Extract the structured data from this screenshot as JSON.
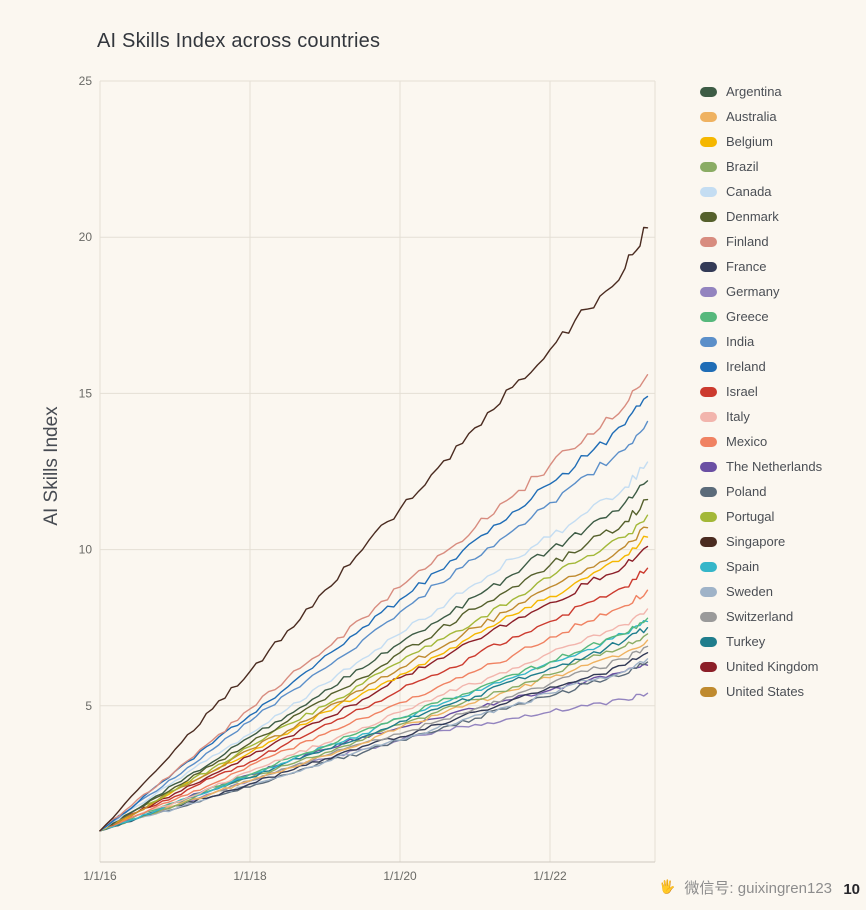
{
  "chart_data": {
    "type": "line",
    "title": "AI Skills Index across countries",
    "xlabel": "",
    "ylabel": "AI Skills Index",
    "ylim": [
      0,
      25
    ],
    "xlim": [
      2016,
      2023.4
    ],
    "grid": true,
    "legend_position": "right",
    "y_ticks": [
      {
        "label": "5",
        "value": 5
      },
      {
        "label": "10",
        "value": 10
      },
      {
        "label": "15",
        "value": 15
      },
      {
        "label": "20",
        "value": 20
      },
      {
        "label": "25",
        "value": 25
      }
    ],
    "x_ticks": [
      {
        "label": "1/1/16",
        "value": 2016
      },
      {
        "label": "1/1/18",
        "value": 2018
      },
      {
        "label": "1/1/20",
        "value": 2020
      },
      {
        "label": "1/1/22",
        "value": 2022
      }
    ],
    "x": [
      2016,
      2016.5,
      2017,
      2017.5,
      2018,
      2018.5,
      2019,
      2019.5,
      2020,
      2020.5,
      2021,
      2021.5,
      2022,
      2022.5,
      2023,
      2023.3
    ],
    "series": [
      {
        "name": "Argentina",
        "color": "#3d5c45",
        "values": [
          1.0,
          1.7,
          2.5,
          3.2,
          4.0,
          4.7,
          5.5,
          6.2,
          7.0,
          7.7,
          8.5,
          9.2,
          10.0,
          10.7,
          11.5,
          12.2
        ]
      },
      {
        "name": "Australia",
        "color": "#efb261",
        "values": [
          1.0,
          1.4,
          1.8,
          2.2,
          2.6,
          3.0,
          3.4,
          3.8,
          4.3,
          4.7,
          5.1,
          5.5,
          5.9,
          6.3,
          6.7,
          7.1
        ]
      },
      {
        "name": "Belgium",
        "color": "#f5b700",
        "values": [
          1.0,
          1.6,
          2.3,
          2.9,
          3.5,
          4.1,
          4.8,
          5.4,
          6.0,
          6.6,
          7.3,
          7.9,
          8.5,
          9.1,
          9.8,
          10.4
        ]
      },
      {
        "name": "Brazil",
        "color": "#8aac64",
        "values": [
          1.0,
          1.4,
          1.8,
          2.3,
          2.7,
          3.1,
          3.5,
          3.9,
          4.4,
          4.8,
          5.2,
          5.6,
          6.0,
          6.5,
          6.9,
          7.3
        ]
      },
      {
        "name": "Canada",
        "color": "#c4ddf2",
        "values": [
          1.0,
          1.8,
          2.6,
          3.4,
          4.1,
          4.9,
          5.7,
          6.5,
          7.3,
          8.1,
          8.9,
          9.7,
          10.4,
          11.2,
          12.0,
          12.8
        ]
      },
      {
        "name": "Denmark",
        "color": "#55602c",
        "values": [
          1.0,
          1.7,
          2.4,
          3.1,
          3.8,
          4.5,
          5.2,
          5.9,
          6.7,
          7.4,
          8.1,
          8.8,
          9.5,
          10.2,
          10.9,
          11.6
        ]
      },
      {
        "name": "Finland",
        "color": "#d88c7f",
        "values": [
          1.0,
          2.0,
          2.9,
          3.9,
          4.9,
          5.9,
          6.8,
          7.8,
          8.8,
          9.8,
          10.7,
          11.7,
          12.7,
          13.7,
          14.6,
          15.6
        ]
      },
      {
        "name": "France",
        "color": "#333a56",
        "values": [
          1.0,
          1.4,
          1.8,
          2.1,
          2.5,
          2.9,
          3.3,
          3.7,
          4.0,
          4.4,
          4.8,
          5.2,
          5.6,
          5.9,
          6.3,
          6.7
        ]
      },
      {
        "name": "Germany",
        "color": "#9384bf",
        "values": [
          1.0,
          1.4,
          1.8,
          2.2,
          2.6,
          3.0,
          3.3,
          3.6,
          3.9,
          4.2,
          4.4,
          4.6,
          4.8,
          5.0,
          5.2,
          5.4
        ]
      },
      {
        "name": "Greece",
        "color": "#56b87c",
        "values": [
          1.0,
          1.5,
          1.9,
          2.4,
          2.8,
          3.3,
          3.7,
          4.2,
          4.6,
          5.1,
          5.5,
          6.0,
          6.4,
          6.9,
          7.3,
          7.8
        ]
      },
      {
        "name": "India",
        "color": "#5b8fc9",
        "values": [
          1.0,
          1.9,
          2.7,
          3.6,
          4.5,
          5.4,
          6.2,
          7.1,
          8.0,
          8.9,
          9.7,
          10.6,
          11.5,
          12.4,
          13.2,
          14.1
        ]
      },
      {
        "name": "Ireland",
        "color": "#1f6db6",
        "values": [
          1.0,
          1.9,
          2.9,
          3.8,
          4.7,
          5.6,
          6.6,
          7.5,
          8.4,
          9.3,
          10.3,
          11.2,
          12.1,
          13.0,
          14.0,
          14.9
        ]
      },
      {
        "name": "Israel",
        "color": "#cc3a2e",
        "values": [
          1.0,
          1.6,
          2.1,
          2.7,
          3.2,
          3.8,
          4.4,
          4.9,
          5.5,
          6.0,
          6.6,
          7.2,
          7.7,
          8.3,
          8.8,
          9.4
        ]
      },
      {
        "name": "Italy",
        "color": "#f2b5ad",
        "values": [
          1.0,
          1.5,
          1.9,
          2.4,
          2.9,
          3.4,
          3.8,
          4.3,
          4.8,
          5.3,
          5.7,
          6.2,
          6.7,
          7.2,
          7.6,
          8.1
        ]
      },
      {
        "name": "Mexico",
        "color": "#f08262",
        "values": [
          1.0,
          1.5,
          2.0,
          2.5,
          3.1,
          3.6,
          4.1,
          4.6,
          5.1,
          5.6,
          6.1,
          6.6,
          7.2,
          7.7,
          8.2,
          8.7
        ]
      },
      {
        "name": "The Netherlands",
        "color": "#6a4fa3",
        "values": [
          1.0,
          1.5,
          1.9,
          2.4,
          2.8,
          3.2,
          3.6,
          4.0,
          4.3,
          4.6,
          4.9,
          5.2,
          5.5,
          5.8,
          6.1,
          6.3
        ]
      },
      {
        "name": "Poland",
        "color": "#5b6b7a",
        "values": [
          1.0,
          1.4,
          1.7,
          2.1,
          2.4,
          2.8,
          3.2,
          3.5,
          3.9,
          4.2,
          4.6,
          5.0,
          5.3,
          5.7,
          6.0,
          6.4
        ]
      },
      {
        "name": "Portugal",
        "color": "#a3b838",
        "values": [
          1.0,
          1.7,
          2.3,
          3.0,
          3.7,
          4.4,
          5.0,
          5.7,
          6.4,
          7.1,
          7.7,
          8.4,
          9.1,
          9.8,
          10.4,
          11.1
        ]
      },
      {
        "name": "Singapore",
        "color": "#4a2b20",
        "values": [
          1.0,
          2.3,
          3.6,
          4.9,
          6.1,
          7.4,
          8.7,
          10.0,
          11.3,
          12.6,
          13.9,
          15.2,
          16.4,
          17.7,
          19.0,
          20.3
        ]
      },
      {
        "name": "Spain",
        "color": "#35b6c9",
        "values": [
          1.0,
          1.4,
          1.9,
          2.3,
          2.8,
          3.2,
          3.7,
          4.1,
          4.6,
          5.0,
          5.5,
          5.9,
          6.4,
          6.8,
          7.3,
          7.7
        ]
      },
      {
        "name": "Sweden",
        "color": "#9fb3c8",
        "values": [
          1.0,
          1.4,
          1.7,
          2.1,
          2.5,
          2.8,
          3.2,
          3.6,
          3.9,
          4.3,
          4.7,
          5.0,
          5.4,
          5.8,
          6.1,
          6.5
        ]
      },
      {
        "name": "Switzerland",
        "color": "#9a9a9a",
        "values": [
          1.0,
          1.4,
          1.8,
          2.2,
          2.6,
          3.0,
          3.4,
          3.8,
          4.1,
          4.5,
          4.9,
          5.3,
          5.7,
          6.1,
          6.5,
          6.9
        ]
      },
      {
        "name": "Turkey",
        "color": "#1f7d8c",
        "values": [
          1.0,
          1.4,
          1.9,
          2.3,
          2.7,
          3.2,
          3.6,
          4.0,
          4.5,
          4.9,
          5.3,
          5.8,
          6.2,
          6.6,
          7.1,
          7.5
        ]
      },
      {
        "name": "United Kingdom",
        "color": "#8c1f28",
        "values": [
          1.0,
          1.6,
          2.2,
          2.8,
          3.4,
          4.0,
          4.6,
          5.2,
          5.9,
          6.5,
          7.1,
          7.7,
          8.3,
          8.9,
          9.5,
          10.1
        ]
      },
      {
        "name": "United States",
        "color": "#bf8a2e",
        "values": [
          1.0,
          1.6,
          2.3,
          2.9,
          3.6,
          4.2,
          4.9,
          5.5,
          6.2,
          6.8,
          7.5,
          8.1,
          8.8,
          9.4,
          10.1,
          10.7
        ]
      }
    ]
  },
  "colors": {
    "background": "#fbf7f0",
    "gridline": "#e4dfd5",
    "axis_line": "#cfc9bf",
    "tick_text": "#6a6a66",
    "title_text": "#33373d"
  },
  "watermark": {
    "icon": "🖐",
    "text": "微信号: guixingren123",
    "page_number": "10"
  }
}
